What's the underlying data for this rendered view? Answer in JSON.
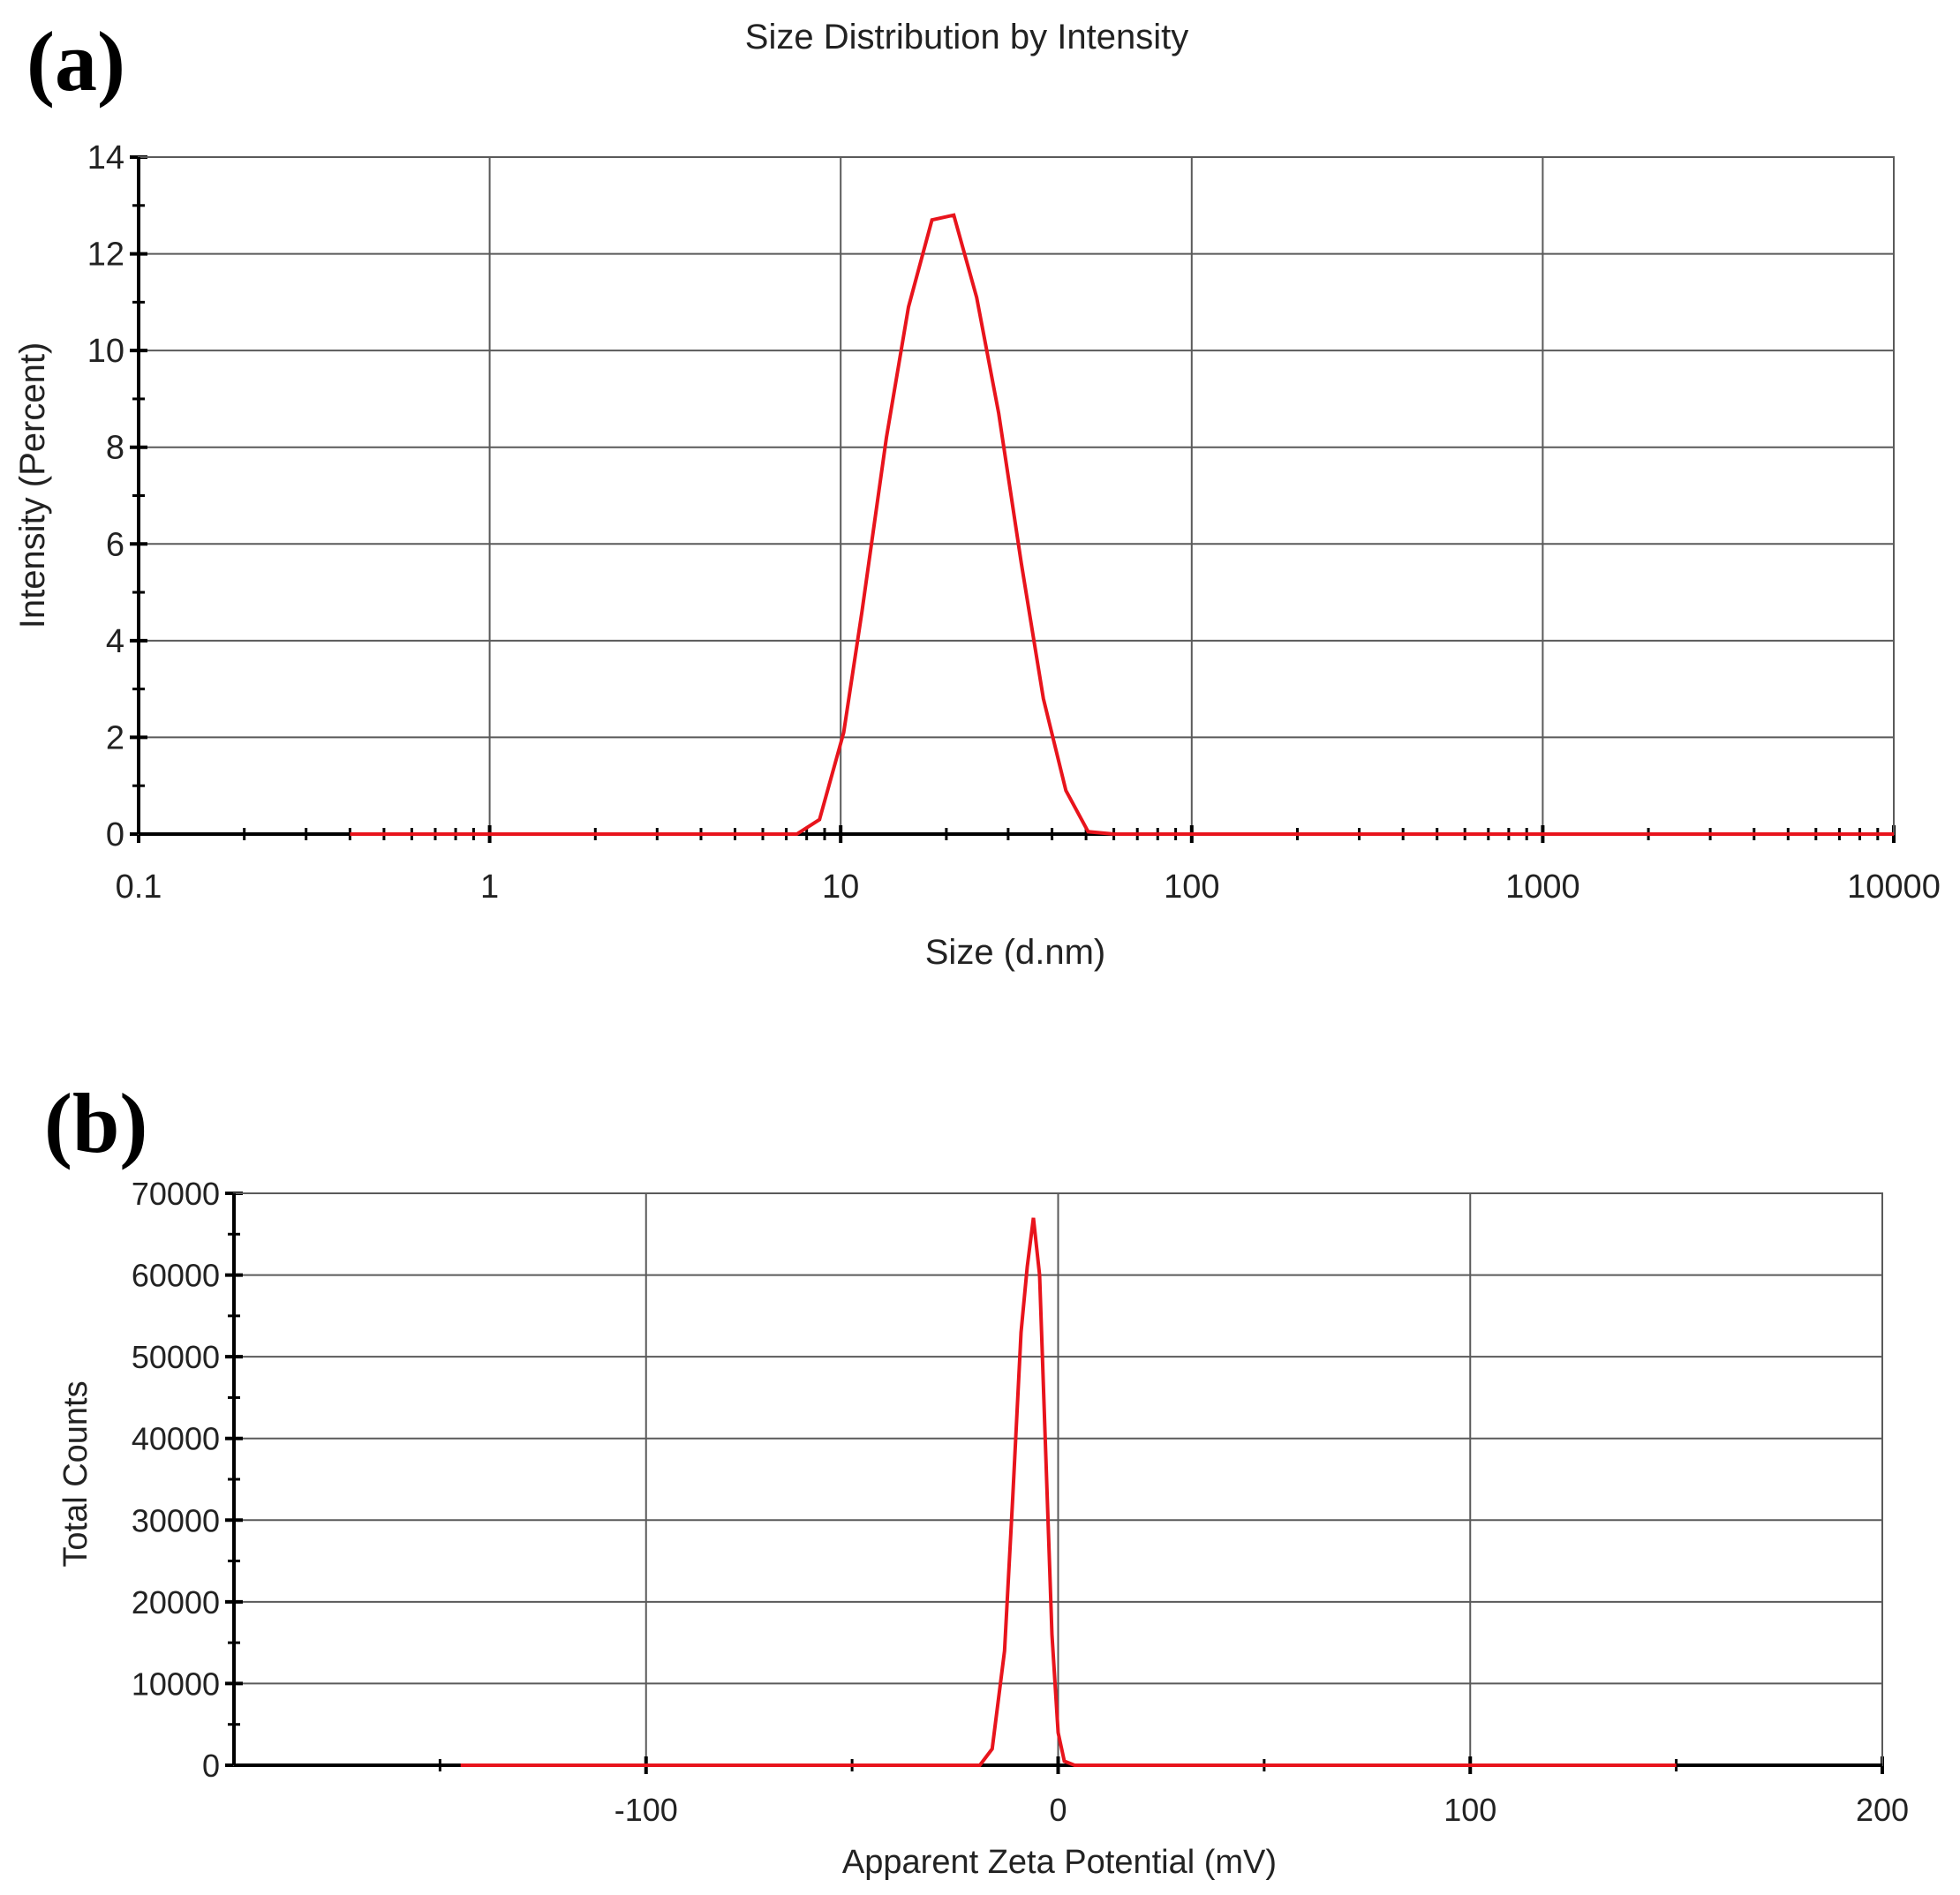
{
  "chart_data": [
    {
      "panel_label": "(a)",
      "type": "line",
      "title": "Size Distribution by Intensity",
      "xlabel": "Size (d.nm)",
      "ylabel": "Intensity (Percent)",
      "xscale": "log",
      "xlim": [
        0.1,
        10000
      ],
      "ylim": [
        0,
        14
      ],
      "xticks": [
        0.1,
        1,
        10,
        100,
        1000,
        10000
      ],
      "xtick_labels": [
        "0.1",
        "1",
        "10",
        "100",
        "1000",
        "10000"
      ],
      "yticks": [
        0,
        2,
        4,
        6,
        8,
        10,
        12,
        14
      ],
      "ytick_labels": [
        "0",
        "2",
        "4",
        "6",
        "8",
        "10",
        "12",
        "14"
      ],
      "grid": true,
      "line_color": "#e8141c",
      "series": [
        {
          "x": [
            0.4,
            1,
            3,
            7.5,
            8.7,
            10.2,
            11.5,
            13.5,
            15.6,
            18.2,
            21.0,
            24.4,
            28.2,
            32.7,
            37.8,
            43.8,
            50.7,
            60,
            100,
            1000,
            10000
          ],
          "y": [
            0,
            0,
            0,
            0,
            0.3,
            2.1,
            4.6,
            8.2,
            10.9,
            12.7,
            12.8,
            11.1,
            8.7,
            5.6,
            2.8,
            0.9,
            0.05,
            0,
            0,
            0,
            0
          ]
        }
      ]
    },
    {
      "panel_label": "(b)",
      "type": "line",
      "title": "",
      "xlabel": "Apparent Zeta Potential (mV)",
      "ylabel": "Total Counts",
      "xlim": [
        -200,
        200
      ],
      "ylim": [
        0,
        70000
      ],
      "xticks": [
        -100,
        0,
        100,
        200
      ],
      "xtick_labels": [
        "-100",
        "0",
        "100",
        "200"
      ],
      "yticks": [
        0,
        10000,
        20000,
        30000,
        40000,
        50000,
        60000,
        70000
      ],
      "ytick_labels": [
        "0",
        "10000",
        "20000",
        "30000",
        "40000",
        "50000",
        "60000",
        "70000"
      ],
      "grid": true,
      "line_color": "#e8141c",
      "series": [
        {
          "x": [
            -145,
            -19,
            -16,
            -13,
            -11,
            -9,
            -7.5,
            -6,
            -4.5,
            -3,
            -1.5,
            0,
            1.5,
            4,
            150
          ],
          "y": [
            0,
            0,
            2000,
            14000,
            33000,
            53000,
            61000,
            67000,
            60000,
            38000,
            16000,
            4000,
            500,
            0,
            0
          ]
        }
      ]
    }
  ]
}
